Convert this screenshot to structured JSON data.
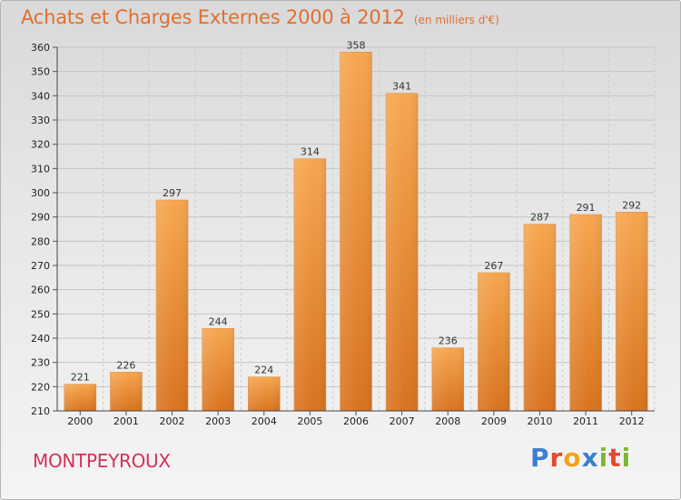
{
  "header": {
    "title": "Achats et Charges Externes 2000 à 2012",
    "unit": "(en milliers d'€)"
  },
  "footer": {
    "place": "MONTPEYROUX",
    "logo_letters": [
      {
        "ch": "P",
        "color": "#3b7fd0"
      },
      {
        "ch": "r",
        "color": "#e4492e"
      },
      {
        "ch": "o",
        "color": "#f2a21d"
      },
      {
        "ch": "x",
        "color": "#3b7fd0"
      },
      {
        "ch": "i",
        "color": "#7cb832"
      },
      {
        "ch": "t",
        "color": "#e4492e"
      },
      {
        "ch": "i",
        "color": "#7cb832"
      }
    ]
  },
  "chart_data": {
    "type": "bar",
    "categories": [
      "2000",
      "2001",
      "2002",
      "2003",
      "2004",
      "2005",
      "2006",
      "2007",
      "2008",
      "2009",
      "2010",
      "2011",
      "2012"
    ],
    "values": [
      221,
      226,
      297,
      244,
      224,
      314,
      358,
      341,
      236,
      267,
      287,
      291,
      292
    ],
    "title": "Achats et Charges Externes 2000 à 2012",
    "ylim": [
      210,
      360
    ],
    "yticks": [
      210,
      220,
      230,
      240,
      250,
      260,
      270,
      280,
      290,
      300,
      310,
      320,
      330,
      340,
      350,
      360
    ],
    "grid": true,
    "bar_color_top": "#f6a64f",
    "bar_color_bottom": "#d8731f"
  }
}
